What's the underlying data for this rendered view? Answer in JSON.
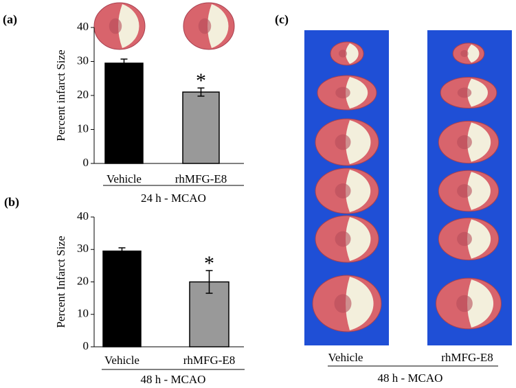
{
  "chart_data": [
    {
      "type": "bar",
      "panel": "(a)",
      "ylabel": "Percent infarct Size",
      "categories": [
        "Vehicle",
        "rhMFG-E8"
      ],
      "values": [
        29.5,
        21
      ],
      "errors": [
        1.2,
        1.2
      ],
      "colors": [
        "#000000",
        "#999999"
      ],
      "ylim": [
        0,
        40
      ],
      "yticks": [
        0,
        10,
        20,
        30,
        40
      ],
      "group_label": "24 h - MCAO",
      "annotation": "*"
    },
    {
      "type": "bar",
      "panel": "(b)",
      "ylabel": "Percent Infarct Size",
      "categories": [
        "Vehicle",
        "rhMFG-E8"
      ],
      "values": [
        29.5,
        20
      ],
      "errors": [
        1.0,
        3.5
      ],
      "colors": [
        "#000000",
        "#999999"
      ],
      "ylim": [
        0,
        40
      ],
      "yticks": [
        0,
        10,
        20,
        30,
        40
      ],
      "group_label": "48 h - MCAO",
      "annotation": "*"
    }
  ],
  "panel_c": {
    "panel": "(c)",
    "categories": [
      "Vehicle",
      "rhMFG-E8"
    ],
    "group_label": "48 h - MCAO"
  }
}
